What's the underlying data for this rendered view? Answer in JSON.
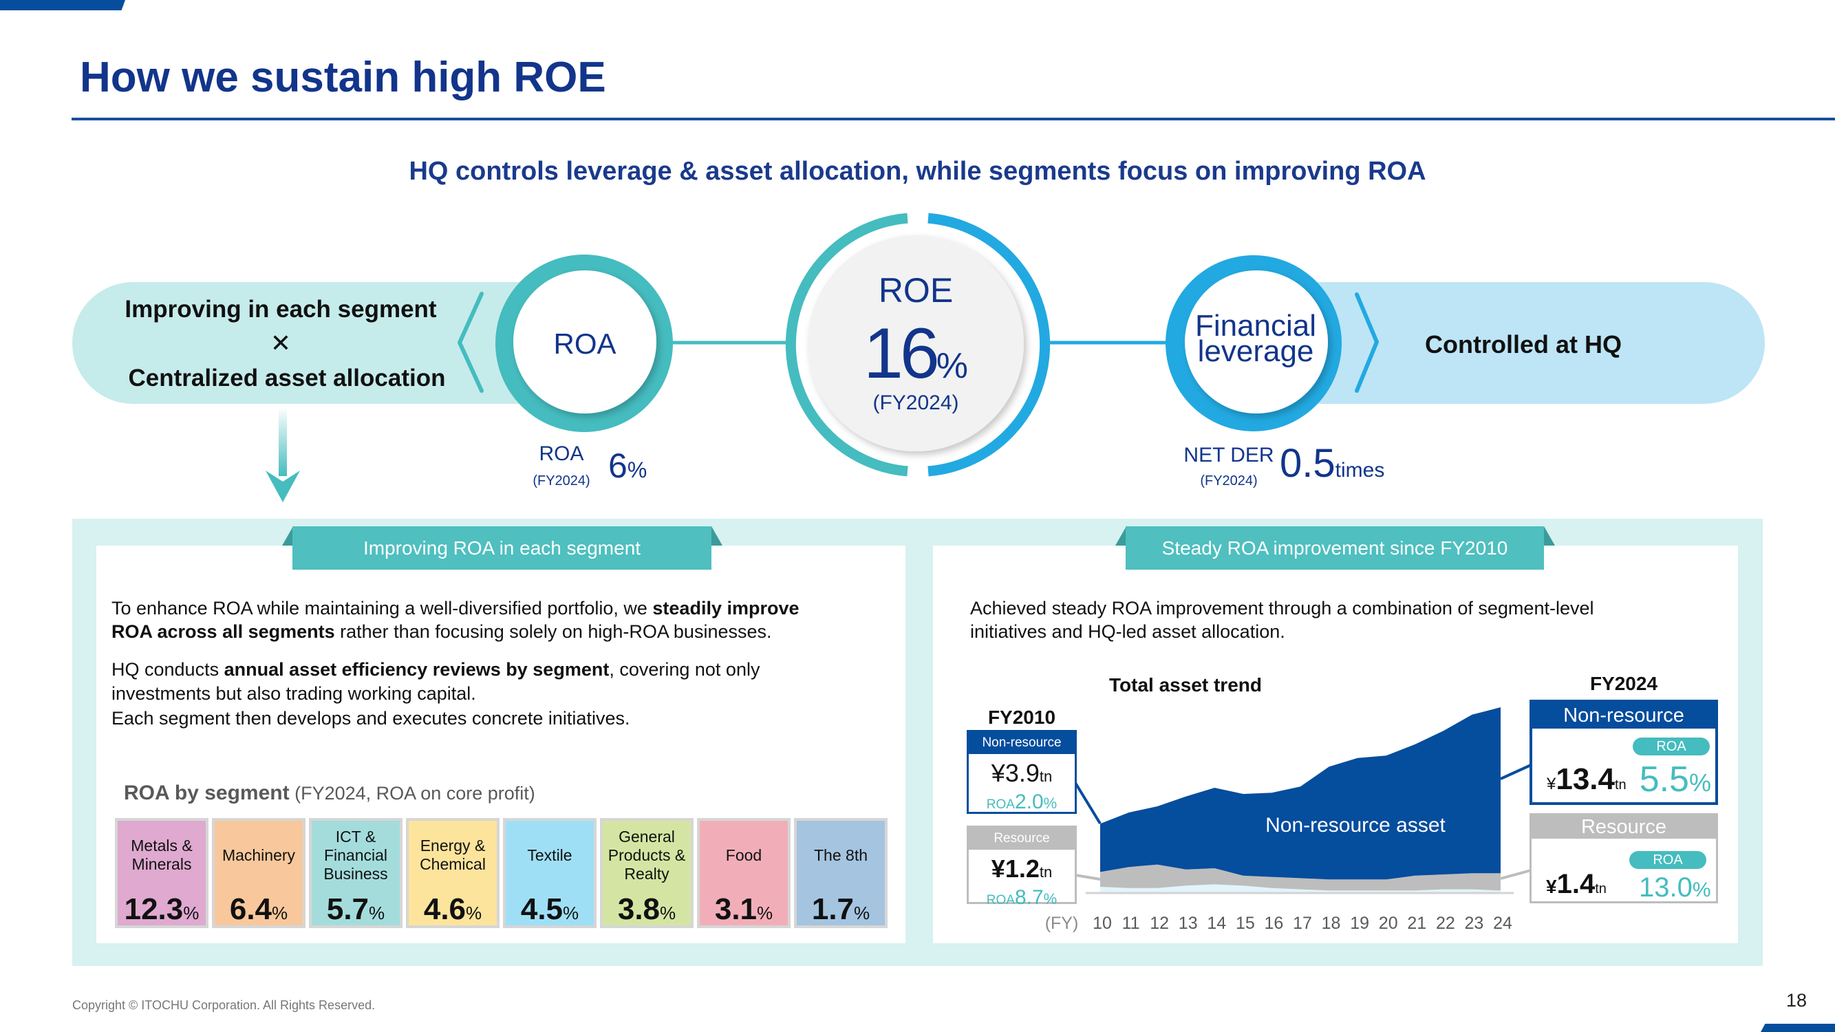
{
  "page": {
    "title": "How we sustain high ROE",
    "subtitle": "HQ controls leverage & asset allocation, while segments focus on improving ROA",
    "copyright": "Copyright © ITOCHU Corporation. All Rights Reserved.",
    "page_number": "18"
  },
  "diagram": {
    "left_pill": {
      "line1": "Improving in each segment",
      "times_symbol": "✕",
      "line2": "Centralized asset allocation"
    },
    "roa_circle": {
      "label": "ROA"
    },
    "roe_circle": {
      "label": "ROE",
      "value": "16",
      "unit": "%",
      "period": "(FY2024)"
    },
    "leverage_circle": {
      "line1": "Financial",
      "line2": "leverage"
    },
    "right_pill": {
      "text": "Controlled at HQ"
    },
    "roa_metric": {
      "label": "ROA",
      "period": "(FY2024)",
      "value": "6",
      "unit": "%"
    },
    "net_der_metric": {
      "label": "NET DER",
      "period": "(FY2024)",
      "value": "0.5",
      "unit": "times"
    },
    "colors": {
      "teal": "#45bcbf",
      "blue": "#22a9e1",
      "navy": "#12358b"
    }
  },
  "left_card": {
    "tab": "Improving ROA in each segment",
    "paragraph1": {
      "line1_regular": "To enhance ROA while maintaining a well-diversified portfolio, we ",
      "line1_bold": "steadily improve",
      "line2_bold": "ROA across all segments",
      "line2_regular": " rather than focusing solely on high-ROA businesses."
    },
    "paragraph2": {
      "line1_regular_a": "HQ conducts ",
      "line1_bold": "annual asset efficiency reviews by segment",
      "line1_regular_b": ", covering not only",
      "line2": "investments but also trading working capital.",
      "line3": "Each segment then develops and executes concrete initiatives."
    },
    "roa_by_segment": {
      "heading": "ROA by segment",
      "note": " (FY2024, ROA on core profit)",
      "segments": [
        {
          "name": "Metals &\nMinerals",
          "value": "12.3",
          "unit": "%",
          "color": "#dfa9d0"
        },
        {
          "name": "Machinery",
          "value": "6.4",
          "unit": "%",
          "color": "#f8c89c"
        },
        {
          "name": "ICT &\nFinancial\nBusiness",
          "value": "5.7",
          "unit": "%",
          "color": "#a4dcdc"
        },
        {
          "name": "Energy &\nChemical",
          "value": "4.6",
          "unit": "%",
          "color": "#fde49c"
        },
        {
          "name": "Textile",
          "value": "4.5",
          "unit": "%",
          "color": "#9fdff6"
        },
        {
          "name": "General\nProducts &\nRealty",
          "value": "3.8",
          "unit": "%",
          "color": "#d4e5a3"
        },
        {
          "name": "Food",
          "value": "3.1",
          "unit": "%",
          "color": "#f2aeb8"
        },
        {
          "name": "The 8th",
          "value": "1.7",
          "unit": "%",
          "color": "#a4c4e0"
        }
      ]
    }
  },
  "right_card": {
    "tab": "Steady ROA improvement since FY2010",
    "lines": [
      "Achieved steady ROA improvement through a combination of segment-level",
      "initiatives and HQ-led asset allocation."
    ]
  },
  "chart_data": {
    "type": "area",
    "stacked": true,
    "title": "Total asset trend",
    "xlabel": "(FY)",
    "ylabel": "",
    "unit": "tn",
    "categories": [
      "10",
      "11",
      "12",
      "13",
      "14",
      "15",
      "16",
      "17",
      "18",
      "19",
      "20",
      "21",
      "22",
      "23",
      "24"
    ],
    "ylim": [
      0,
      15
    ],
    "grid": false,
    "series": [
      {
        "name": "",
        "color": "#e3f4fb",
        "values": [
          0.5,
          0.4,
          0.4,
          0.6,
          0.7,
          0.6,
          0.4,
          0.3,
          0.2,
          0.2,
          0.2,
          0.2,
          0.3,
          0.3,
          0.2
        ]
      },
      {
        "name": "Resource",
        "color": "#bdbdbd",
        "values": [
          1.2,
          1.7,
          1.9,
          1.3,
          1.3,
          0.8,
          0.9,
          0.9,
          0.9,
          0.9,
          0.9,
          1.2,
          1.2,
          1.3,
          1.4
        ]
      },
      {
        "name": "Non-resource asset",
        "color": "#054d9d",
        "values": [
          3.9,
          4.4,
          4.7,
          5.9,
          6.5,
          6.6,
          6.8,
          7.4,
          9.1,
          9.8,
          10.0,
          10.6,
          11.6,
          12.8,
          13.4
        ]
      }
    ],
    "annotations": {
      "area_label": "Non-resource asset",
      "fy2010": {
        "label": "FY2010",
        "non_resource": {
          "header": "Non-resource",
          "currency": "¥",
          "amount": "3.9",
          "unit": "tn",
          "roa_label": "ROA",
          "roa": "2.0",
          "roa_unit": "%"
        },
        "resource": {
          "header": "Resource",
          "currency": "¥",
          "amount": "1.2",
          "unit": "tn",
          "roa_label": "ROA",
          "roa": "8.7",
          "roa_unit": "%"
        }
      },
      "fy2024": {
        "label": "FY2024",
        "non_resource": {
          "header": "Non-resource",
          "currency": "¥",
          "amount": "13.4",
          "unit": "tn",
          "roa_label": "ROA",
          "roa": "5.5",
          "roa_unit": "%"
        },
        "resource": {
          "header": "Resource",
          "currency": "¥",
          "amount": "1.4",
          "unit": "tn",
          "roa_label": "ROA",
          "roa": "13.0",
          "roa_unit": "%"
        }
      }
    }
  }
}
